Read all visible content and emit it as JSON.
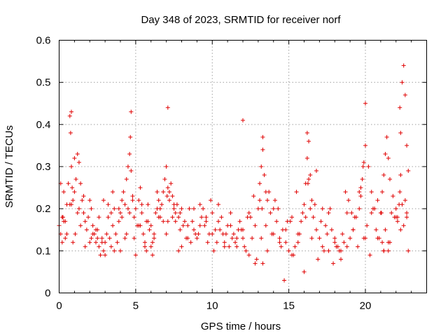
{
  "chart_data": {
    "type": "scatter",
    "title": "Day 348 of 2023, SRMTID for receiver norf",
    "xlabel": "GPS time / hours",
    "ylabel": "SRMTID / TECUs",
    "xlim": [
      0,
      24
    ],
    "ylim": [
      0,
      0.6
    ],
    "xticks": [
      0,
      5,
      10,
      15,
      20
    ],
    "xtick_labels": [
      "0",
      "5",
      "10",
      "15",
      "20"
    ],
    "yticks": [
      0,
      0.1,
      0.2,
      0.3,
      0.4,
      0.5,
      0.6
    ],
    "ytick_labels": [
      "0",
      "0.1",
      "0.2",
      "0.3",
      "0.4",
      "0.5",
      "0.6"
    ],
    "grid": true,
    "marker": "+",
    "color": "#e00000",
    "series": [
      {
        "name": "SRMTID",
        "x": [
          0.0,
          0.1,
          0.2,
          0.3,
          0.4,
          0.5,
          0.6,
          0.7,
          0.75,
          0.8,
          0.85,
          0.9,
          1.0,
          1.1,
          1.2,
          1.3,
          1.4,
          1.5,
          1.6,
          1.7,
          1.8,
          1.9,
          2.0,
          2.1,
          2.2,
          2.3,
          2.4,
          2.5,
          2.6,
          2.7,
          2.8,
          2.9,
          3.0,
          3.1,
          3.2,
          3.3,
          3.4,
          3.5,
          3.6,
          3.7,
          3.8,
          3.9,
          4.0,
          4.1,
          4.2,
          4.3,
          4.4,
          4.5,
          4.6,
          4.65,
          4.7,
          4.8,
          4.9,
          5.0,
          5.1,
          5.2,
          5.3,
          5.4,
          5.5,
          5.6,
          5.7,
          5.8,
          5.9,
          6.0,
          6.1,
          6.2,
          6.3,
          6.4,
          6.5,
          6.6,
          6.7,
          6.8,
          6.9,
          7.0,
          7.1,
          7.2,
          7.3,
          7.4,
          7.5,
          7.6,
          7.7,
          7.8,
          7.9,
          8.0,
          8.2,
          8.4,
          8.6,
          8.8,
          9.0,
          9.2,
          9.4,
          9.6,
          9.8,
          10.0,
          10.2,
          10.4,
          10.6,
          10.8,
          11.0,
          11.2,
          11.4,
          11.6,
          11.8,
          12.0,
          12.2,
          12.4,
          12.6,
          12.8,
          13.0,
          13.1,
          13.2,
          13.3,
          13.4,
          13.5,
          13.6,
          13.8,
          14.0,
          14.2,
          14.4,
          14.6,
          14.8,
          15.0,
          15.2,
          15.4,
          15.6,
          15.8,
          16.0,
          16.1,
          16.2,
          16.3,
          16.4,
          16.5,
          16.6,
          16.8,
          17.0,
          17.2,
          17.4,
          17.6,
          17.8,
          18.0,
          18.2,
          18.4,
          18.6,
          18.8,
          19.0,
          19.2,
          19.4,
          19.6,
          19.7,
          19.8,
          19.9,
          20.0,
          20.2,
          20.4,
          20.6,
          20.8,
          21.0,
          21.1,
          21.2,
          21.3,
          21.4,
          21.5,
          21.6,
          21.8,
          22.0,
          22.1,
          22.2,
          22.25,
          22.3,
          22.4,
          22.5,
          22.6,
          22.7,
          22.8,
          0.3,
          0.7,
          1.0,
          1.4,
          2.0,
          2.6,
          2.9,
          3.4,
          4.0,
          4.4,
          5.0,
          5.4,
          5.8,
          6.2,
          6.6,
          7.0,
          7.4,
          7.8,
          8.1,
          8.5,
          8.9,
          9.3,
          9.7,
          10.1,
          10.5,
          10.9,
          11.3,
          11.7,
          12.1,
          12.5,
          12.9,
          13.3,
          13.7,
          14.1,
          14.5,
          14.9,
          15.3,
          15.7,
          16.1,
          16.5,
          16.9,
          17.3,
          17.7,
          18.1,
          18.5,
          18.9,
          19.3,
          19.7,
          20.1,
          20.5,
          20.9,
          21.3,
          21.7,
          22.1,
          22.5,
          22.8,
          0.2,
          0.5,
          0.9,
          1.3,
          1.7,
          2.2,
          2.5,
          3.0,
          3.5,
          3.9,
          4.3,
          4.8,
          5.3,
          5.7,
          6.1,
          6.5,
          7.1,
          7.5,
          7.9,
          8.3,
          8.7,
          9.1,
          9.5,
          9.9,
          10.3,
          10.7,
          11.1,
          11.5,
          11.9,
          12.3,
          12.7,
          13.2,
          13.6,
          14.0,
          14.4,
          14.8,
          15.2,
          15.6,
          16.0,
          16.4,
          16.8,
          17.2,
          17.6,
          18.0,
          18.4,
          18.8,
          19.2,
          19.6,
          20.0,
          20.4,
          20.8,
          21.2,
          21.6,
          22.0,
          22.4,
          22.7,
          0.1,
          0.4,
          0.8,
          1.2,
          1.6,
          2.1,
          2.4,
          2.8,
          3.2,
          3.6,
          4.1,
          4.5,
          4.9,
          5.2,
          5.6,
          6.0,
          6.4,
          6.8,
          7.2,
          7.6,
          8.0,
          8.4,
          8.8,
          9.2,
          9.6,
          10.0,
          10.4,
          10.8,
          11.2,
          11.6,
          12.0,
          12.4,
          12.8,
          13.1,
          13.5,
          13.9,
          14.3,
          14.7,
          15.1,
          15.5,
          15.9,
          16.3,
          16.7,
          17.1,
          17.5,
          17.9,
          18.3,
          18.7,
          19.1,
          19.5,
          19.9,
          20.3,
          20.7,
          21.1,
          21.5,
          21.9,
          22.3,
          22.6,
          0.25,
          1.05,
          4.6,
          7.05,
          13.25,
          16.25,
          19.85,
          21.05,
          22.25,
          22.3,
          20.0,
          21.2,
          21.5,
          22.7,
          0.8,
          4.7,
          7.1,
          12.0,
          13.3,
          16.2
        ],
        "y": [
          0.16,
          0.14,
          0.12,
          0.17,
          0.13,
          0.21,
          0.26,
          0.42,
          0.38,
          0.3,
          0.25,
          0.22,
          0.24,
          0.27,
          0.33,
          0.31,
          0.26,
          0.22,
          0.19,
          0.17,
          0.15,
          0.18,
          0.22,
          0.2,
          0.16,
          0.14,
          0.12,
          0.15,
          0.11,
          0.09,
          0.13,
          0.1,
          0.12,
          0.14,
          0.18,
          0.13,
          0.11,
          0.16,
          0.2,
          0.14,
          0.12,
          0.17,
          0.19,
          0.22,
          0.24,
          0.21,
          0.27,
          0.3,
          0.33,
          0.37,
          0.29,
          0.23,
          0.18,
          0.2,
          0.16,
          0.22,
          0.25,
          0.19,
          0.14,
          0.12,
          0.17,
          0.21,
          0.15,
          0.11,
          0.09,
          0.14,
          0.19,
          0.24,
          0.22,
          0.18,
          0.21,
          0.24,
          0.27,
          0.3,
          0.25,
          0.22,
          0.26,
          0.23,
          0.2,
          0.17,
          0.21,
          0.18,
          0.15,
          0.2,
          0.17,
          0.13,
          0.12,
          0.15,
          0.13,
          0.16,
          0.2,
          0.17,
          0.14,
          0.19,
          0.15,
          0.21,
          0.18,
          0.12,
          0.16,
          0.19,
          0.14,
          0.11,
          0.17,
          0.13,
          0.1,
          0.09,
          0.13,
          0.16,
          0.2,
          0.26,
          0.3,
          0.34,
          0.28,
          0.24,
          0.22,
          0.19,
          0.2,
          0.17,
          0.13,
          0.15,
          0.12,
          0.1,
          0.09,
          0.11,
          0.14,
          0.17,
          0.21,
          0.26,
          0.32,
          0.36,
          0.28,
          0.22,
          0.18,
          0.15,
          0.13,
          0.11,
          0.16,
          0.19,
          0.15,
          0.13,
          0.11,
          0.1,
          0.12,
          0.11,
          0.13,
          0.15,
          0.18,
          0.2,
          0.23,
          0.27,
          0.31,
          0.35,
          0.3,
          0.24,
          0.2,
          0.22,
          0.19,
          0.24,
          0.28,
          0.33,
          0.37,
          0.32,
          0.27,
          0.23,
          0.2,
          0.18,
          0.21,
          0.24,
          0.28,
          0.5,
          0.54,
          0.47,
          0.35,
          0.29,
          0.24,
          0.21,
          0.32,
          0.16,
          0.12,
          0.18,
          0.22,
          0.19,
          0.1,
          0.14,
          0.09,
          0.21,
          0.17,
          0.13,
          0.2,
          0.14,
          0.18,
          0.1,
          0.16,
          0.2,
          0.14,
          0.18,
          0.12,
          0.1,
          0.15,
          0.14,
          0.13,
          0.15,
          0.11,
          0.18,
          0.08,
          0.07,
          0.24,
          0.22,
          0.11,
          0.17,
          0.09,
          0.14,
          0.18,
          0.13,
          0.08,
          0.1,
          0.2,
          0.11,
          0.14,
          0.22,
          0.18,
          0.25,
          0.16,
          0.2,
          0.13,
          0.15,
          0.19,
          0.17,
          0.16,
          0.1,
          0.18,
          0.14,
          0.12,
          0.2,
          0.11,
          0.14,
          0.13,
          0.09,
          0.24,
          0.2,
          0.13,
          0.22,
          0.16,
          0.1,
          0.12,
          0.18,
          0.17,
          0.21,
          0.19,
          0.13,
          0.17,
          0.14,
          0.16,
          0.22,
          0.12,
          0.14,
          0.11,
          0.12,
          0.15,
          0.18,
          0.23,
          0.13,
          0.1,
          0.14,
          0.12,
          0.15,
          0.18,
          0.12,
          0.05,
          0.2,
          0.29,
          0.2,
          0.1,
          0.12,
          0.08,
          0.19,
          0.15,
          0.24,
          0.13,
          0.19,
          0.13,
          0.1,
          0.12,
          0.18,
          0.21,
          0.19,
          0.26,
          0.17,
          0.21,
          0.19,
          0.23,
          0.13,
          0.15,
          0.12,
          0.21,
          0.1,
          0.18,
          0.2,
          0.13,
          0.16,
          0.11,
          0.16,
          0.2,
          0.17,
          0.24,
          0.19,
          0.11,
          0.16,
          0.2,
          0.21,
          0.18,
          0.14,
          0.17,
          0.11,
          0.16,
          0.13,
          0.15,
          0.19,
          0.07,
          0.22,
          0.16,
          0.14,
          0.2,
          0.03,
          0.17,
          0.24,
          0.19,
          0.27,
          0.21,
          0.17,
          0.14,
          0.07,
          0.1,
          0.24,
          0.19,
          0.11,
          0.13,
          0.09,
          0.15,
          0.12,
          0.1,
          0.18,
          0.15,
          0.22,
          0.18,
          0.14,
          0.19,
          0.23,
          0.2,
          0.26,
          0.3,
          0.19,
          0.44,
          0.38,
          0.45,
          0.1,
          0.12,
          0.18,
          0.43,
          0.43,
          0.44,
          0.41,
          0.37,
          0.38
        ]
      }
    ]
  }
}
